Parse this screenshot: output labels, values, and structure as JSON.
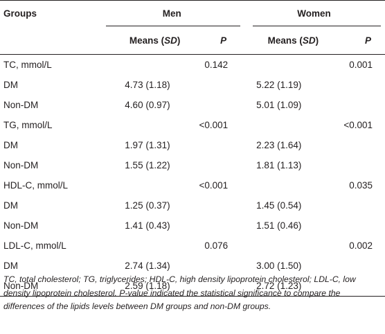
{
  "table": {
    "header": {
      "groups_label": "Groups",
      "men_label": "Men",
      "women_label": "Women",
      "means_label": "Means (",
      "sd_label": "SD",
      "means_close": ")",
      "p_label": "P"
    },
    "rows": [
      {
        "label": "TC, mmol/L",
        "men_mean": "",
        "men_p": "0.142",
        "women_mean": "",
        "women_p": "0.001"
      },
      {
        "label": "DM",
        "men_mean": "4.73 (1.18)",
        "men_p": "",
        "women_mean": "5.22 (1.19)",
        "women_p": ""
      },
      {
        "label": "Non-DM",
        "men_mean": "4.60 (0.97)",
        "men_p": "",
        "women_mean": "5.01 (1.09)",
        "women_p": ""
      },
      {
        "label": "TG, mmol/L",
        "men_mean": "",
        "men_p": "<0.001",
        "women_mean": "",
        "women_p": "<0.001"
      },
      {
        "label": "DM",
        "men_mean": "1.97 (1.31)",
        "men_p": "",
        "women_mean": "2.23 (1.64)",
        "women_p": ""
      },
      {
        "label": "Non-DM",
        "men_mean": "1.55 (1.22)",
        "men_p": "",
        "women_mean": "1.81 (1.13)",
        "women_p": ""
      },
      {
        "label": "HDL-C, mmol/L",
        "men_mean": "",
        "men_p": "<0.001",
        "women_mean": "",
        "women_p": "0.035"
      },
      {
        "label": "DM",
        "men_mean": "1.25 (0.37)",
        "men_p": "",
        "women_mean": "1.45 (0.54)",
        "women_p": ""
      },
      {
        "label": "Non-DM",
        "men_mean": "1.41 (0.43)",
        "men_p": "",
        "women_mean": "1.51 (0.46)",
        "women_p": ""
      },
      {
        "label": "LDL-C, mmol/L",
        "men_mean": "",
        "men_p": "0.076",
        "women_mean": "",
        "women_p": "0.002"
      },
      {
        "label": "DM",
        "men_mean": "2.74 (1.34)",
        "men_p": "",
        "women_mean": "3.00 (1.50)",
        "women_p": ""
      },
      {
        "label": "Non-DM",
        "men_mean": "2.59 (1.18)",
        "men_p": "",
        "women_mean": "2.72 (1.23)",
        "women_p": ""
      }
    ]
  },
  "footnote": "TC, total cholesterol; TG, triglycerides; HDL-C, high density lipoprotein cholesterol; LDL-C, low density lipoprotein cholesterol. P-value indicated the statistical significance to compare the differences of the lipids levels between DM groups and non-DM groups."
}
